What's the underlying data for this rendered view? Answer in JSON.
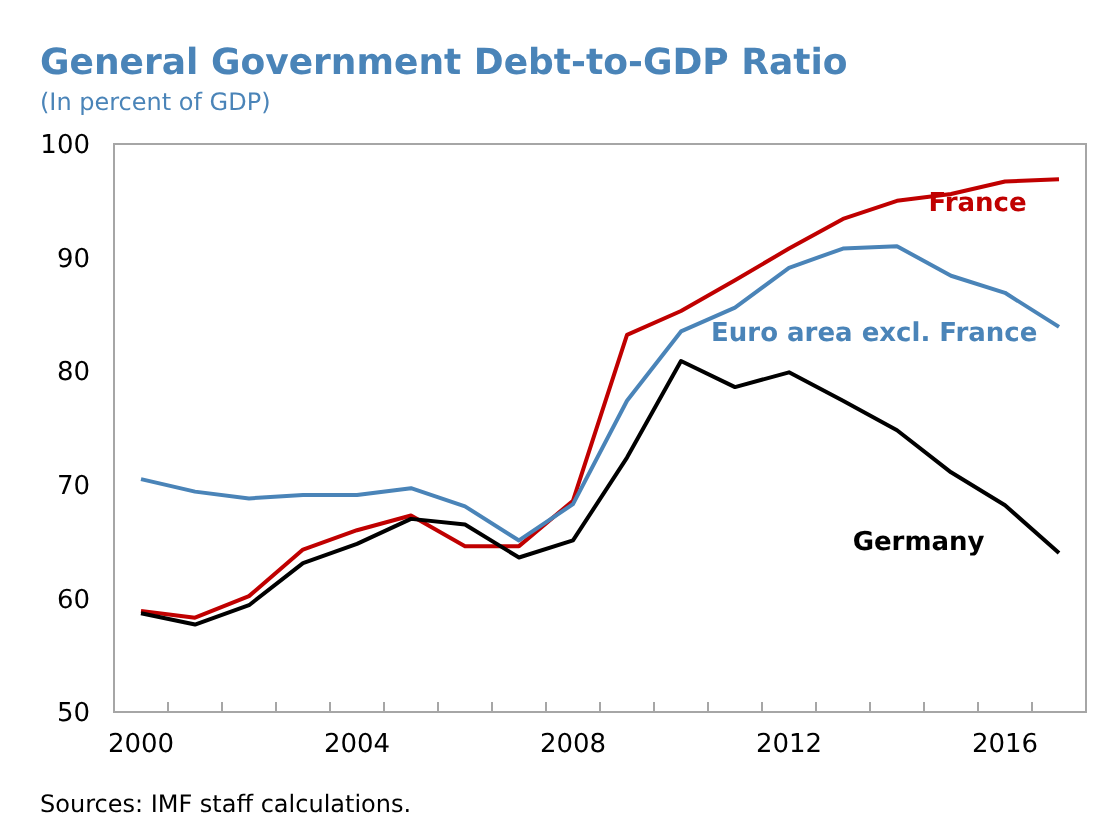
{
  "chart_data": {
    "type": "line",
    "title": "General Government Debt-to-GDP Ratio",
    "subtitle": "(In percent of GDP)",
    "categories": [
      "2000",
      null,
      null,
      null,
      "2004",
      null,
      null,
      null,
      "2008",
      null,
      null,
      null,
      "2012",
      null,
      null,
      null,
      "2016",
      null
    ],
    "series": [
      {
        "name": "France",
        "color": "#c00000",
        "values": [
          58.9,
          58.3,
          60.2,
          64.3,
          66.0,
          67.3,
          64.6,
          64.6,
          68.6,
          83.2,
          85.3,
          88.0,
          90.8,
          93.4,
          95.0,
          95.6,
          96.7,
          96.9
        ]
      },
      {
        "name": "Euro area excl. France",
        "color": "#4a84b8",
        "values": [
          70.5,
          69.4,
          68.8,
          69.1,
          69.1,
          69.7,
          68.1,
          65.1,
          68.3,
          77.4,
          83.5,
          85.6,
          89.1,
          90.8,
          91.0,
          88.4,
          86.9,
          83.9
        ]
      },
      {
        "name": "Germany",
        "color": "#000000",
        "values": [
          58.7,
          57.7,
          59.4,
          63.1,
          64.8,
          67.0,
          66.5,
          63.6,
          65.1,
          72.4,
          80.9,
          78.6,
          79.9,
          77.4,
          74.8,
          71.1,
          68.2,
          64.0
        ]
      }
    ],
    "ylim": [
      50,
      100
    ],
    "yticks": [
      50,
      60,
      70,
      80,
      90,
      100
    ],
    "grid": false,
    "marker": "none",
    "line_style": "solid",
    "annotations": [
      "Sources: IMF staff calculations."
    ]
  }
}
